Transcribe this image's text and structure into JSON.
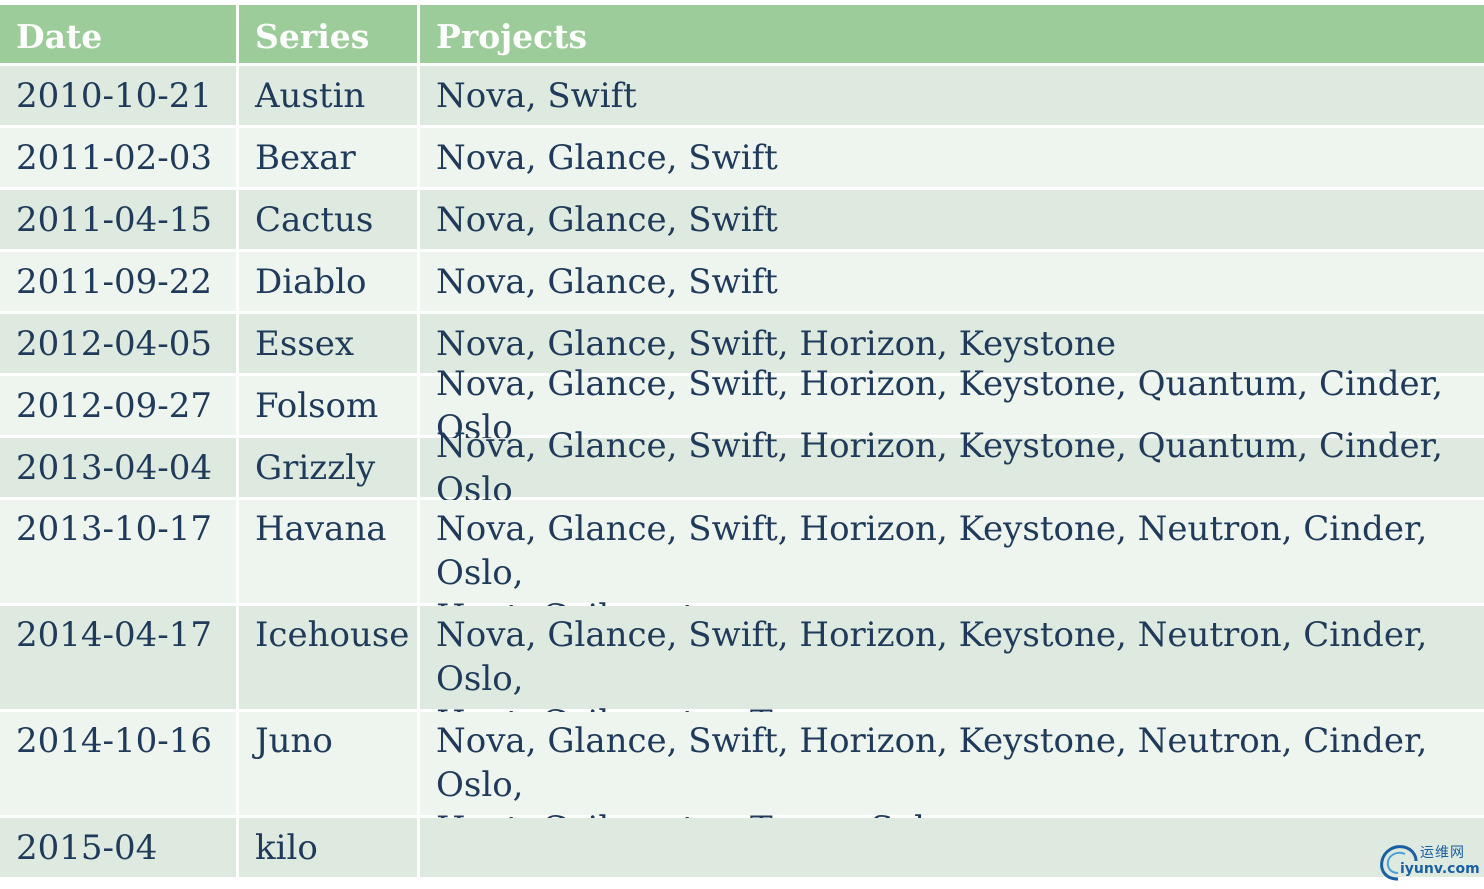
{
  "header": {
    "date": "Date",
    "series": "Series",
    "projects": "Projects"
  },
  "rows": [
    {
      "date": "2010-10-21",
      "series": "Austin",
      "projects": "Nova, Swift"
    },
    {
      "date": "2011-02-03",
      "series": "Bexar",
      "projects": "Nova, Glance, Swift"
    },
    {
      "date": "2011-04-15",
      "series": "Cactus",
      "projects": "Nova, Glance, Swift"
    },
    {
      "date": "2011-09-22",
      "series": "Diablo",
      "projects": "Nova, Glance, Swift"
    },
    {
      "date": "2012-04-05",
      "series": "Essex",
      "projects": "Nova, Glance, Swift, Horizon, Keystone"
    },
    {
      "date": "2012-09-27",
      "series": "Folsom",
      "projects": "Nova, Glance, Swift, Horizon, Keystone, Quantum, Cinder, Oslo"
    },
    {
      "date": "2013-04-04",
      "series": "Grizzly",
      "projects": "Nova, Glance, Swift, Horizon, Keystone, Quantum, Cinder, Oslo"
    },
    {
      "date": "2013-10-17",
      "series": "Havana",
      "projects_line1": "Nova, Glance, Swift, Horizon, Keystone, Neutron, Cinder, Oslo,",
      "projects_line2": "Heat, Ceilometer"
    },
    {
      "date": "2014-04-17",
      "series": "Icehouse",
      "projects_line1": "Nova, Glance, Swift, Horizon, Keystone, Neutron, Cinder, Oslo,",
      "projects_line2": "Heat, Ceilometer, Trove"
    },
    {
      "date": "2014-10-16",
      "series": "Juno",
      "projects_line1": "Nova, Glance, Swift, Horizon, Keystone, Neutron, Cinder, Oslo,",
      "projects_line2": "Heat, Ceilometer, Trove, Sahara"
    },
    {
      "date": "2015-04",
      "series": "kilo",
      "projects": ""
    }
  ],
  "watermark": {
    "cn": "运维网",
    "en": "iyunv.com"
  },
  "colors": {
    "header_bg": "#9bcc9a",
    "row_odd_bg": "#deeadf",
    "row_even_bg": "#eef4ee",
    "text": "#1f3a5a"
  }
}
